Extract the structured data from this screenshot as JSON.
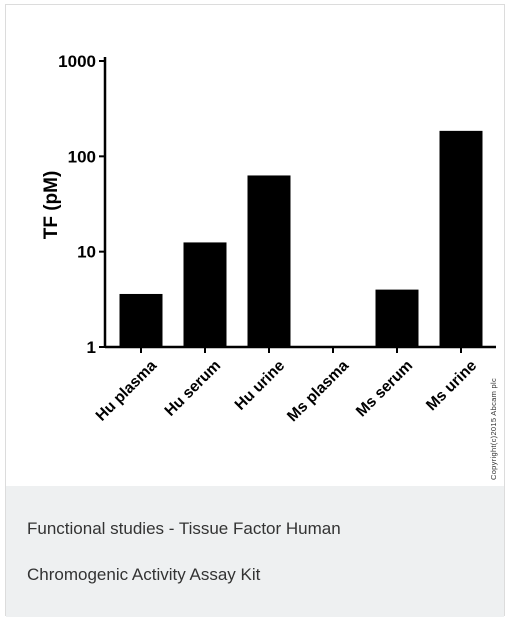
{
  "chart_data": {
    "type": "bar",
    "categories": [
      "Hu plasma",
      "Hu serum",
      "Hu urine",
      "Ms plasma",
      "Ms serum",
      "Ms urine"
    ],
    "values": [
      3.6,
      12.5,
      63,
      1,
      4,
      185
    ],
    "ylabel": "TF (pM)",
    "xlabel": "",
    "yscale": "log",
    "ylim": [
      1,
      1000
    ],
    "yticks": [
      "1",
      "10",
      "100",
      "1000"
    ],
    "bar_color": "#000000",
    "grid": false
  },
  "copyright": "Copyright(c)2015 Abcam plc",
  "caption": {
    "line1": "Functional studies - Tissue Factor Human",
    "line2": "Chromogenic Activity Assay Kit"
  }
}
